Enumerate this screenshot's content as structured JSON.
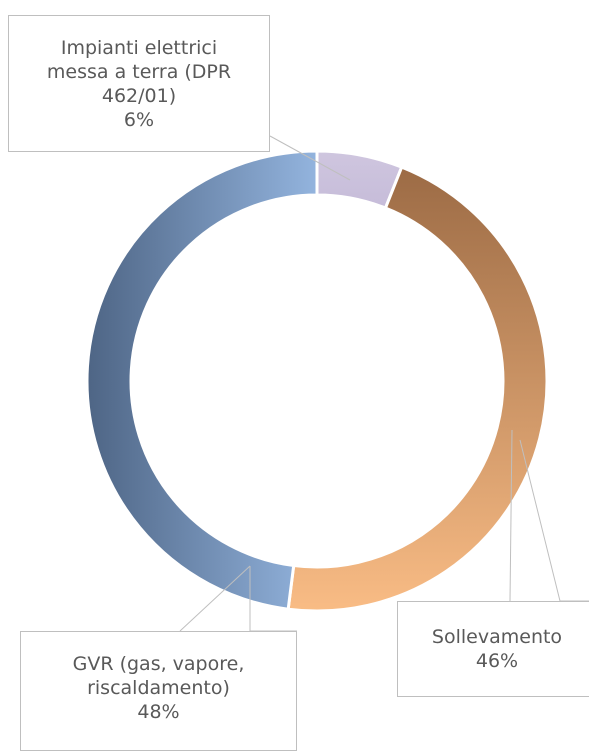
{
  "chart_data": {
    "type": "donut",
    "categories": [
      "Impianti elettrici messa a terra (DPR 462/01)",
      "Sollevamento",
      "GVR (gas, vapore, riscaldamento)"
    ],
    "values": [
      6,
      46,
      48
    ],
    "value_labels": [
      "6%",
      "46%",
      "48%"
    ],
    "gradients": [
      [
        "#cfc6df",
        "#c6bcd9"
      ],
      [
        "#9c6b45",
        "#f9bc85"
      ],
      [
        "#4e6585",
        "#93b4de"
      ]
    ]
  }
}
